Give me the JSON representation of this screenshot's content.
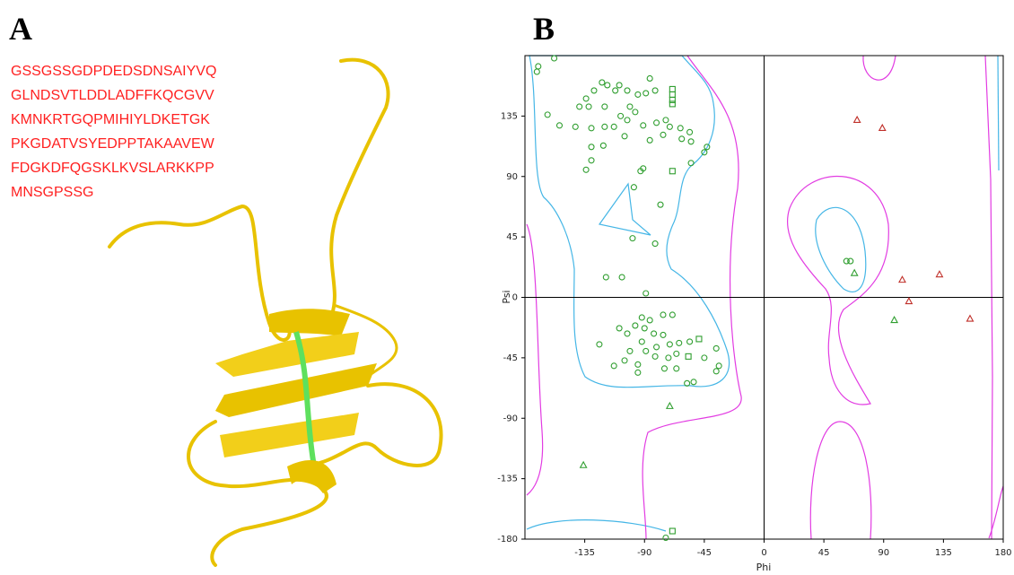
{
  "panel_a": {
    "label": "A",
    "sequence": [
      "GSSGSSGDPDEDSDNSAIYVQ",
      "GLNDSVTLDDLADFFKQCGVV",
      "KMNKRTGQPMIHIYLDKETGK",
      "PKGDATVSYEDPPTAKAAVEW",
      "FDGKDFQGSKLKVSLARKKPP",
      "MNSGPSSG"
    ]
  },
  "chart_data": {
    "type": "scatter",
    "label": "B",
    "xlabel": "Phi",
    "ylabel": "Psi",
    "xlim": [
      -180,
      180
    ],
    "ylim": [
      -180,
      180
    ],
    "xticks": [
      -135,
      -90,
      -45,
      0,
      45,
      90,
      135,
      180
    ],
    "yticks": [
      -180,
      -135,
      -90,
      -45,
      0,
      45,
      90,
      135
    ],
    "series": [
      {
        "marker": "circle",
        "color": "#2f9e2f",
        "x": [
          -170,
          -171,
          -158,
          -163,
          -154,
          -139,
          -134,
          -128,
          -122,
          -118,
          -109,
          -112,
          -103,
          -95,
          -89,
          -82,
          -86,
          -101,
          -108,
          -120,
          -132,
          -142,
          -130,
          -120,
          -113,
          -103,
          -97,
          -91,
          -81,
          -74,
          -71,
          -63,
          -56,
          -62,
          -55,
          -43,
          -45,
          -55,
          -76,
          -86,
          -105,
          -121,
          -130,
          -134,
          -130,
          -93,
          -91,
          -98,
          -78,
          -99,
          -82,
          -119,
          -107,
          -89,
          -92,
          -97,
          -90,
          -86,
          -76,
          -69,
          -83,
          -76,
          -92,
          -103,
          -109,
          -124,
          -101,
          -89,
          -81,
          -71,
          -64,
          -56,
          -36,
          -45,
          -66,
          -72,
          -82,
          -95,
          -105,
          -113,
          -95,
          -75,
          -66,
          -34,
          -36,
          -58,
          -53,
          -74,
          62,
          65
        ],
        "values": [
          172,
          168,
          178,
          136,
          128,
          142,
          148,
          154,
          160,
          158,
          158,
          154,
          154,
          151,
          152,
          154,
          163,
          142,
          135,
          142,
          142,
          127,
          126,
          127,
          127,
          132,
          138,
          128,
          130,
          132,
          127,
          126,
          123,
          118,
          116,
          112,
          108,
          100,
          121,
          117,
          120,
          113,
          102,
          95,
          112,
          94,
          96,
          82,
          69,
          44,
          40,
          15,
          15,
          3,
          -15,
          -21,
          -23,
          -17,
          -13,
          -13,
          -27,
          -28,
          -33,
          -27,
          -23,
          -35,
          -40,
          -40,
          -37,
          -35,
          -34,
          -33,
          -38,
          -45,
          -42,
          -45,
          -44,
          -50,
          -47,
          -51,
          -56,
          -53,
          -53,
          -51,
          -55,
          -64,
          -63,
          -179,
          27,
          27
        ]
      },
      {
        "marker": "square",
        "color": "#2f9e2f",
        "x": [
          -69,
          -69,
          -69,
          -69,
          -69,
          -49,
          -57,
          -69
        ],
        "values": [
          155,
          151,
          147,
          144,
          94,
          -31,
          -44,
          -174
        ]
      },
      {
        "marker": "triangle",
        "color": "#2f9e2f",
        "x": [
          68,
          98,
          -71,
          -136
        ],
        "values": [
          18,
          -17,
          -81,
          -125
        ]
      },
      {
        "marker": "triangle",
        "color": "#c0302a",
        "x": [
          70,
          89,
          104,
          132,
          109,
          155
        ],
        "values": [
          132,
          126,
          13,
          17,
          -3,
          -16
        ]
      }
    ]
  }
}
